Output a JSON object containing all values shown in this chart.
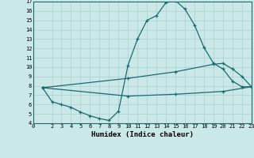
{
  "xlabel": "Humidex (Indice chaleur)",
  "xlim": [
    0,
    23
  ],
  "ylim": [
    4,
    17
  ],
  "xticks": [
    0,
    2,
    3,
    4,
    5,
    6,
    7,
    8,
    9,
    10,
    11,
    12,
    13,
    14,
    15,
    16,
    17,
    18,
    19,
    20,
    21,
    22,
    23
  ],
  "yticks": [
    4,
    5,
    6,
    7,
    8,
    9,
    10,
    11,
    12,
    13,
    14,
    15,
    16,
    17
  ],
  "bg_color": "#cbe8e8",
  "line_color": "#1a6b6b",
  "grid_color": "#aacfcf",
  "line1_x": [
    1,
    2,
    3,
    4,
    5,
    6,
    7,
    8,
    9,
    10,
    11,
    12,
    13,
    14,
    15,
    16,
    17,
    18,
    19,
    20,
    21,
    22,
    23
  ],
  "line1_y": [
    7.8,
    6.3,
    6.0,
    5.7,
    5.2,
    4.8,
    4.5,
    4.3,
    5.3,
    10.2,
    13.0,
    15.0,
    15.5,
    16.9,
    17.1,
    16.2,
    14.5,
    12.1,
    10.4,
    9.8,
    8.5,
    7.9,
    7.9
  ],
  "line2_x": [
    1,
    10,
    15,
    19,
    20,
    21,
    22,
    23
  ],
  "line2_y": [
    7.8,
    8.8,
    9.5,
    10.3,
    10.4,
    9.8,
    9.0,
    7.9
  ],
  "line3_x": [
    1,
    10,
    15,
    20,
    23
  ],
  "line3_y": [
    7.8,
    6.9,
    7.1,
    7.4,
    7.9
  ]
}
